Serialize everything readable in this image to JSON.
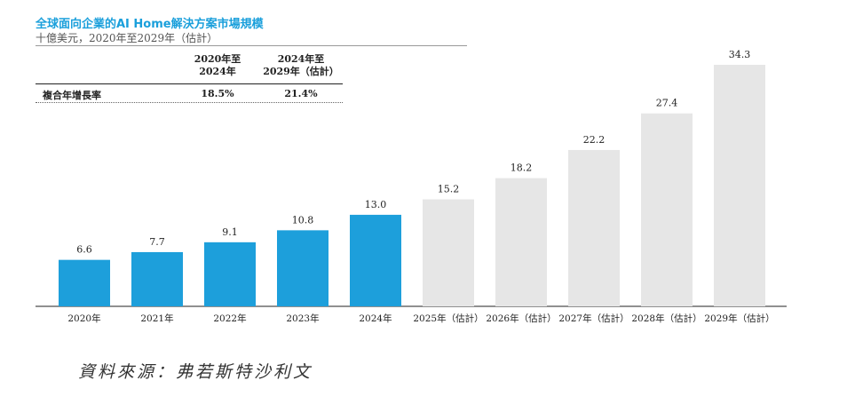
{
  "title": "全球面向企業的AI Home解決方案市場規模",
  "subtitle": "十億美元，2020年至2029年（估計）",
  "cagr_table": {
    "col1_line1": "2020年至",
    "col1_line2": "2024年",
    "col2_line1": "2024年至",
    "col2_line2": "2029年（估計）",
    "row_label": "複合年增長率",
    "col1_value": "18.5%",
    "col2_value": "21.4%"
  },
  "source": "資料來源：弗若斯特沙利文",
  "colors": {
    "actual": "#1d9fdb",
    "forecast": "#e6e6e6",
    "title": "#1a9fdb"
  },
  "chart_data": {
    "type": "bar",
    "categories": [
      "2020年",
      "2021年",
      "2022年",
      "2023年",
      "2024年",
      "2025年（估計）",
      "2026年（估計）",
      "2027年（估計）",
      "2028年（估計）",
      "2029年（估計）"
    ],
    "values": [
      6.6,
      7.7,
      9.1,
      10.8,
      13.0,
      15.2,
      18.2,
      22.2,
      27.4,
      34.3
    ],
    "value_labels": [
      "6.6",
      "7.7",
      "9.1",
      "10.8",
      "13.0",
      "15.2",
      "18.2",
      "22.2",
      "27.4",
      "34.3"
    ],
    "forecast": [
      false,
      false,
      false,
      false,
      false,
      true,
      true,
      true,
      true,
      true
    ],
    "ylim": [
      0,
      34.3
    ]
  }
}
